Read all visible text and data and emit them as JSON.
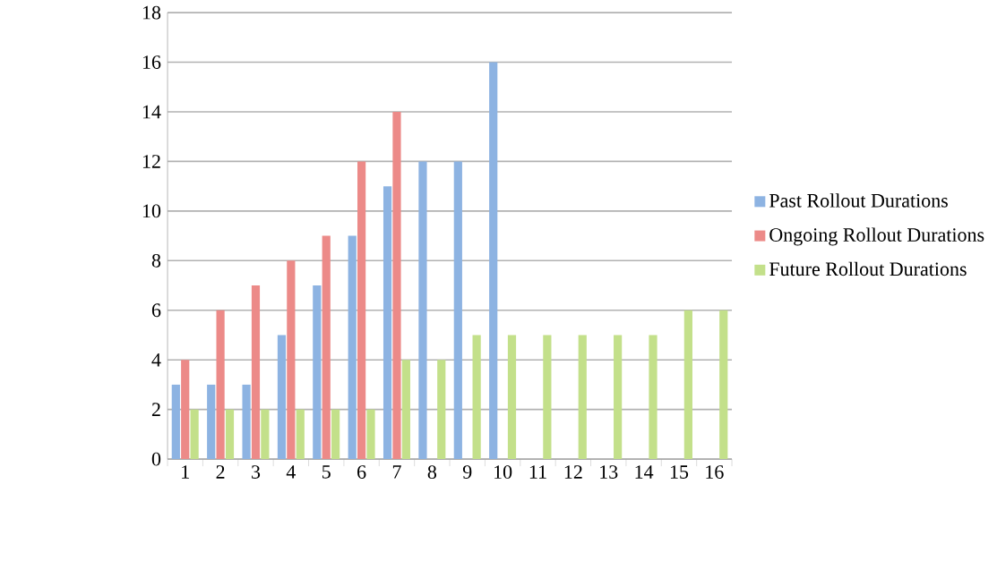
{
  "chart_data": {
    "type": "bar",
    "categories": [
      "1",
      "2",
      "3",
      "4",
      "5",
      "6",
      "7",
      "8",
      "9",
      "10",
      "11",
      "12",
      "13",
      "14",
      "15",
      "16"
    ],
    "series": [
      {
        "name": "Past Rollout Durations",
        "color": "#8db3e2",
        "values": [
          3,
          3,
          3,
          5,
          7,
          9,
          11,
          12,
          12,
          16,
          null,
          null,
          null,
          null,
          null,
          null
        ]
      },
      {
        "name": "Ongoing Rollout Durations",
        "color": "#ec8a88",
        "values": [
          4,
          6,
          7,
          8,
          9,
          12,
          14,
          null,
          null,
          null,
          null,
          null,
          null,
          null,
          null,
          null
        ]
      },
      {
        "name": "Future Rollout Durations",
        "color": "#c3e08a",
        "values": [
          2,
          2,
          2,
          2,
          2,
          2,
          4,
          4,
          5,
          5,
          5,
          5,
          5,
          5,
          6,
          6
        ]
      }
    ],
    "ylim": [
      0,
      18
    ],
    "yticks": [
      0,
      2,
      4,
      6,
      8,
      10,
      12,
      14,
      16,
      18
    ],
    "grid": "y",
    "legend": "right"
  }
}
